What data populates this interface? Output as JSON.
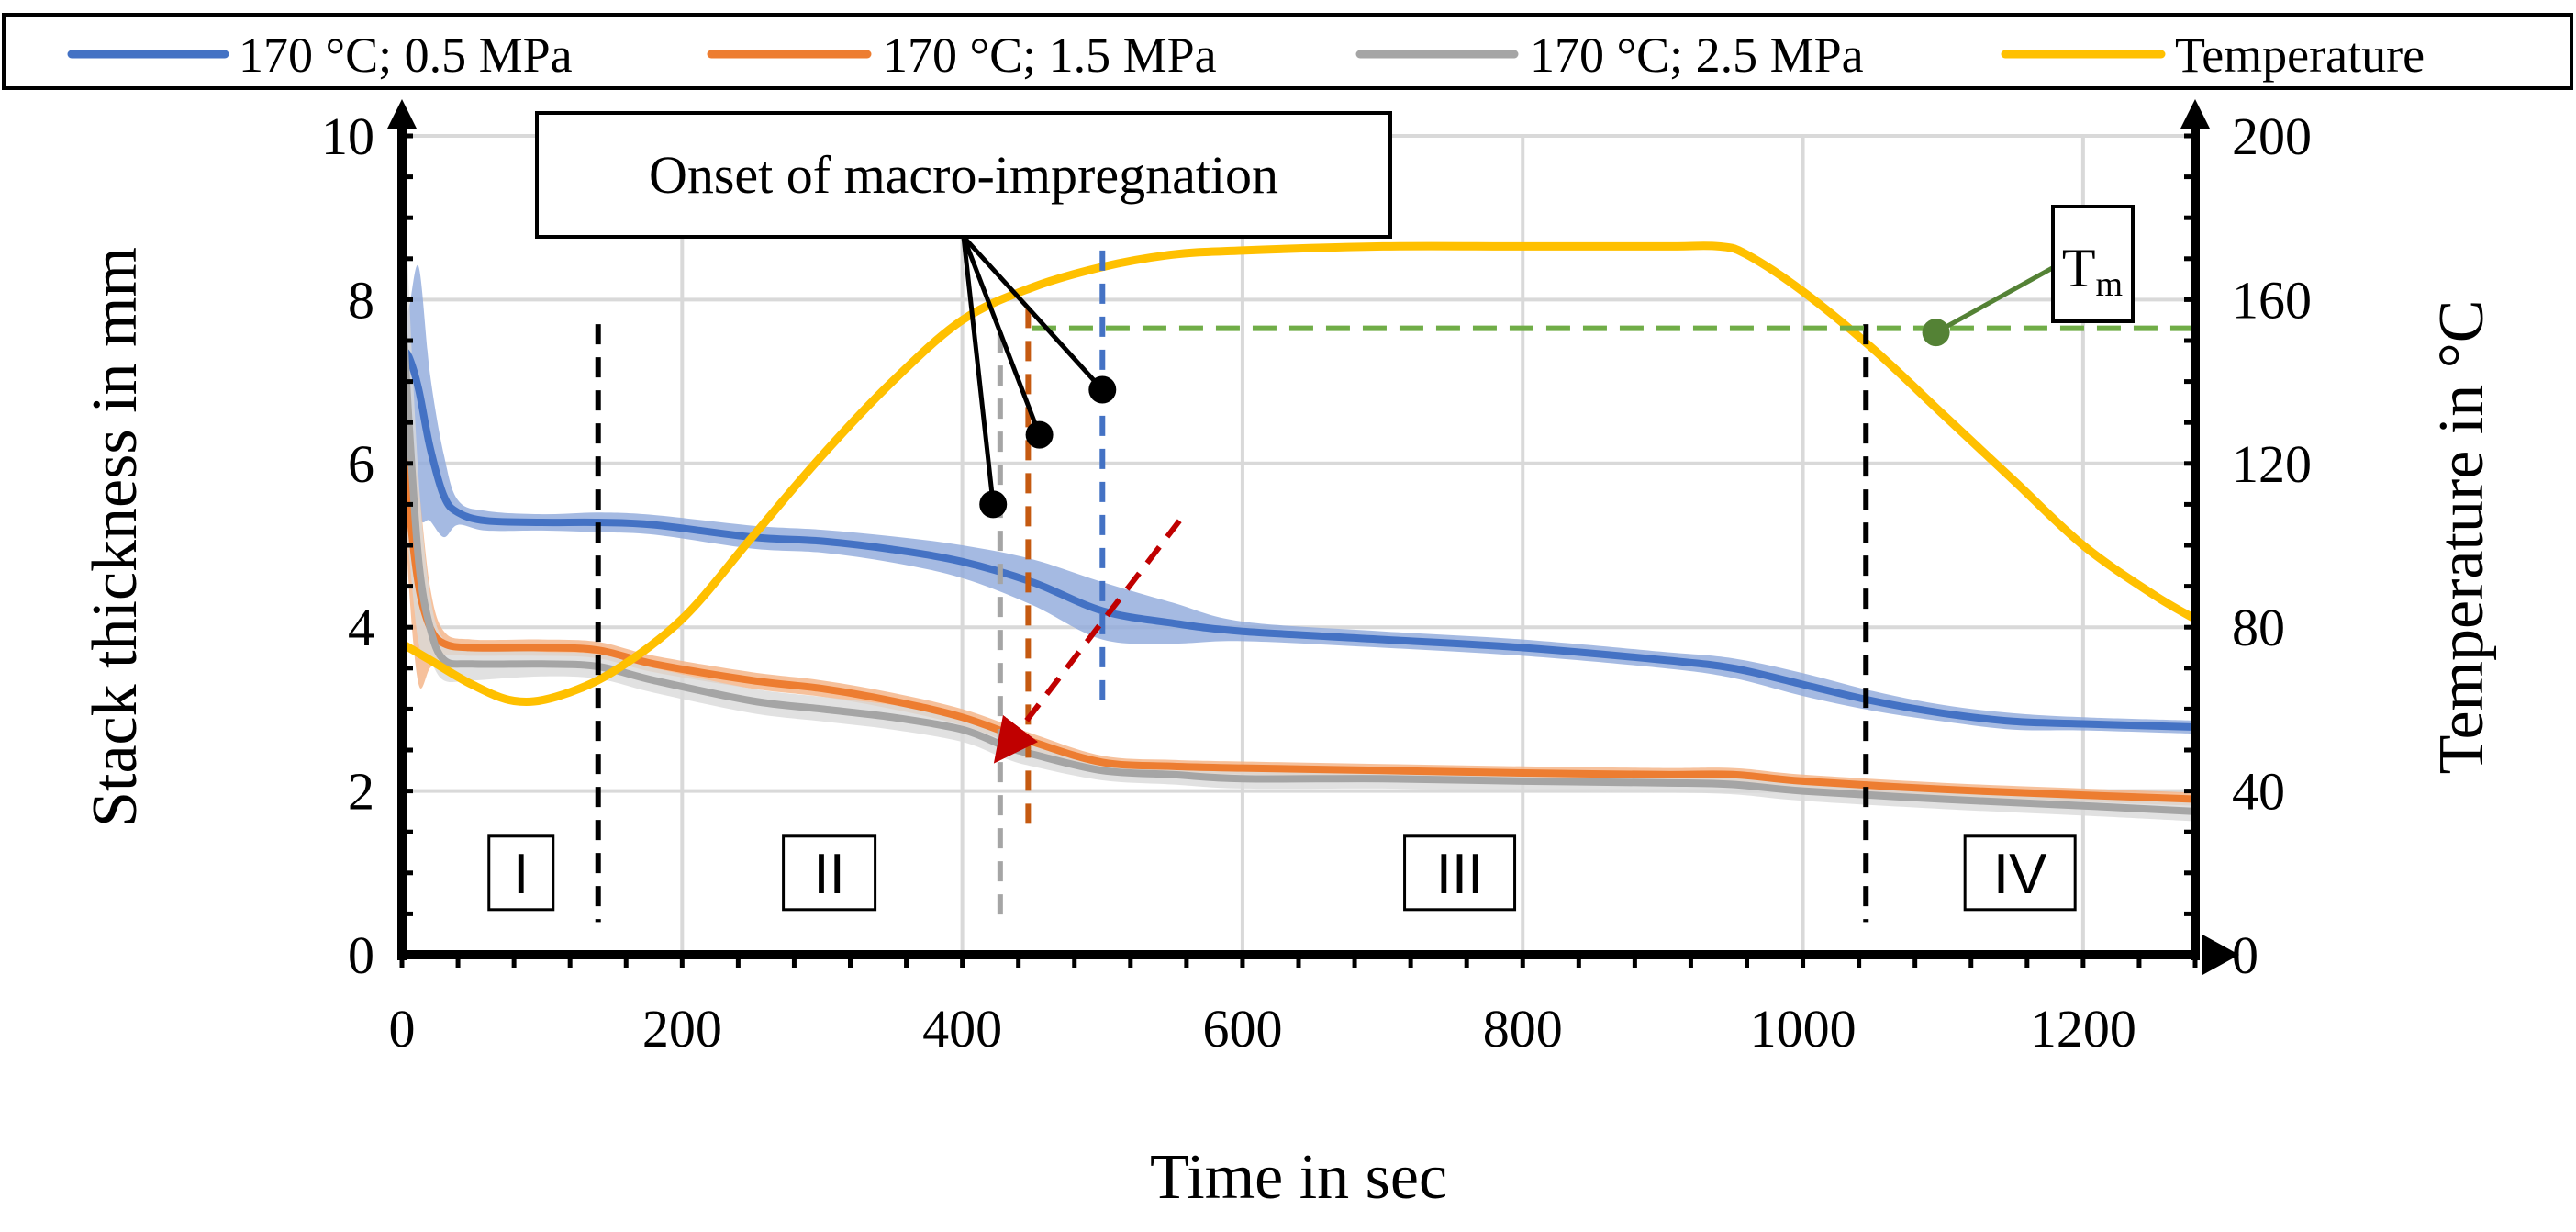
{
  "chart_data": {
    "type": "line",
    "title": "",
    "xlabel": "Time in sec",
    "ylabel": "Stack thickness in mm",
    "y2label": "Temperature in °C",
    "xlim": [
      0,
      1280
    ],
    "ylim": [
      0,
      10
    ],
    "y2lim": [
      0,
      200
    ],
    "xticks": [
      0,
      200,
      400,
      600,
      800,
      1000,
      1200
    ],
    "yticks": [
      0,
      2,
      4,
      6,
      8,
      10
    ],
    "y2ticks": [
      0,
      40,
      80,
      120,
      160,
      200
    ],
    "grid": true,
    "legend_position": "top",
    "series": [
      {
        "name": "170 °C; 0.5 MPa",
        "axis": "left",
        "color": "#4472C4",
        "band_color": "#8EA9DB",
        "x": [
          0,
          5,
          12,
          20,
          30,
          40,
          60,
          100,
          140,
          180,
          250,
          300,
          350,
          400,
          450,
          500,
          550,
          600,
          700,
          800,
          900,
          950,
          1000,
          1050,
          1100,
          1150,
          1200,
          1280
        ],
        "values": [
          7.4,
          7.3,
          6.9,
          6.2,
          5.6,
          5.4,
          5.3,
          5.28,
          5.28,
          5.25,
          5.1,
          5.05,
          4.95,
          4.8,
          4.55,
          4.2,
          4.05,
          3.95,
          3.85,
          3.75,
          3.6,
          3.5,
          3.3,
          3.1,
          2.95,
          2.85,
          2.82,
          2.78
        ],
        "band": [
          0.35,
          0.6,
          1.5,
          0.9,
          0.5,
          0.15,
          0.12,
          0.1,
          0.12,
          0.12,
          0.14,
          0.14,
          0.16,
          0.2,
          0.28,
          0.35,
          0.25,
          0.12,
          0.1,
          0.1,
          0.1,
          0.12,
          0.14,
          0.12,
          0.1,
          0.1,
          0.08,
          0.08
        ]
      },
      {
        "name": "170 °C; 1.5 MPa",
        "axis": "left",
        "color": "#ED7D31",
        "band_color": "#F4B183",
        "x": [
          0,
          5,
          12,
          20,
          30,
          50,
          100,
          140,
          180,
          250,
          300,
          350,
          400,
          450,
          500,
          550,
          600,
          700,
          800,
          900,
          950,
          1000,
          1100,
          1200,
          1280
        ],
        "values": [
          6.7,
          5.5,
          4.5,
          4.0,
          3.8,
          3.75,
          3.75,
          3.72,
          3.55,
          3.35,
          3.25,
          3.1,
          2.9,
          2.6,
          2.35,
          2.3,
          2.28,
          2.25,
          2.22,
          2.2,
          2.2,
          2.12,
          2.02,
          1.95,
          1.9
        ],
        "band": [
          0.4,
          1.0,
          1.2,
          0.5,
          0.15,
          0.1,
          0.1,
          0.1,
          0.1,
          0.1,
          0.1,
          0.1,
          0.1,
          0.1,
          0.08,
          0.08,
          0.08,
          0.08,
          0.08,
          0.08,
          0.08,
          0.08,
          0.08,
          0.08,
          0.08
        ]
      },
      {
        "name": "170 °C; 2.5 MPa",
        "axis": "left",
        "color": "#A5A5A5",
        "band_color": "#D9D9D9",
        "x": [
          0,
          5,
          12,
          20,
          30,
          50,
          100,
          140,
          180,
          250,
          300,
          350,
          400,
          430,
          450,
          500,
          550,
          600,
          700,
          800,
          900,
          950,
          1000,
          1100,
          1200,
          1280
        ],
        "values": [
          8.0,
          6.5,
          4.8,
          4.0,
          3.6,
          3.55,
          3.55,
          3.52,
          3.35,
          3.1,
          3.0,
          2.9,
          2.75,
          2.55,
          2.45,
          2.25,
          2.2,
          2.15,
          2.15,
          2.12,
          2.1,
          2.08,
          2.0,
          1.9,
          1.82,
          1.75
        ],
        "band": [
          2.2,
          1.6,
          1.0,
          0.4,
          0.25,
          0.2,
          0.15,
          0.15,
          0.15,
          0.15,
          0.15,
          0.15,
          0.15,
          0.15,
          0.15,
          0.12,
          0.12,
          0.12,
          0.12,
          0.12,
          0.12,
          0.12,
          0.12,
          0.12,
          0.12,
          0.12
        ]
      },
      {
        "name": "Temperature",
        "axis": "right",
        "color": "#FFC000",
        "x": [
          0,
          20,
          50,
          80,
          110,
          150,
          200,
          250,
          300,
          350,
          400,
          450,
          500,
          550,
          600,
          700,
          800,
          900,
          940,
          960,
          1000,
          1050,
          1100,
          1150,
          1200,
          1250,
          1280
        ],
        "values": [
          76,
          72,
          66,
          62,
          63,
          69,
          82,
          102,
          122,
          140,
          155,
          163,
          168,
          171,
          172,
          173,
          173,
          173,
          173,
          171,
          162,
          148,
          132,
          116,
          100,
          88,
          82
        ]
      }
    ],
    "annotations": {
      "callout": "Onset of macro-impregnation",
      "tm_label": "T",
      "tm_sub": "m",
      "tm_value": 153,
      "phase_labels": [
        "I",
        "II",
        "III",
        "IV"
      ],
      "phase_x": [
        85,
        305,
        755,
        1155
      ],
      "phase_boundaries": [
        140,
        1045
      ],
      "onset_lines": [
        {
          "series": "170 °C; 0.5 MPa",
          "x": 500,
          "color": "#4472C4"
        },
        {
          "series": "170 °C; 1.5 MPa",
          "x": 447,
          "color": "#C55A11"
        },
        {
          "series": "170 °C; 2.5 MPa",
          "x": 427,
          "color": "#A5A5A5"
        }
      ],
      "pointer_dots": [
        {
          "x": 500,
          "y": 6.9
        },
        {
          "x": 455,
          "y": 6.35
        },
        {
          "x": 422,
          "y": 5.5
        }
      ],
      "tm_dot": {
        "x": 1095,
        "y": 7.6
      },
      "trend_arrow": {
        "from": [
          555,
          5.3
        ],
        "to": [
          432,
          2.55
        ],
        "color": "#C00000"
      }
    }
  }
}
